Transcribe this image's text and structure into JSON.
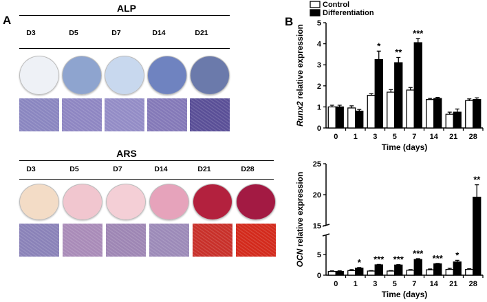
{
  "panel_a": {
    "letter": "A",
    "alp": {
      "title": "ALP",
      "days": [
        "D3",
        "D5",
        "D7",
        "D14",
        "D21"
      ],
      "dish_colors": [
        "#eef1f6",
        "#8ea4cf",
        "#c8d8ee",
        "#6f83c0",
        "#6b7aab"
      ],
      "micro_colors": [
        "#8a86c0",
        "#8e86c2",
        "#938cc6",
        "#8479b8",
        "#5a4f97"
      ]
    },
    "ars": {
      "title": "ARS",
      "days": [
        "D3",
        "D5",
        "D7",
        "D14",
        "D21",
        "D28"
      ],
      "dish_colors": [
        "#f3dcc6",
        "#f1c6cf",
        "#f4cfd6",
        "#e6a3bb",
        "#b3213e",
        "#a31a43"
      ],
      "micro_colors": [
        "#8a82b8",
        "#a98bb8",
        "#9e86b4",
        "#9c8ab8",
        "#c8302a",
        "#d32a1c"
      ]
    }
  },
  "panel_b": {
    "letter": "B",
    "legend": {
      "control": "Control",
      "differentiation": "Differentiation"
    },
    "colors": {
      "control": "#ffffff",
      "differentiation": "#000000",
      "axis": "#000000"
    }
  },
  "chart_data": [
    {
      "type": "bar",
      "categories": [
        "0",
        "1",
        "3",
        "5",
        "7",
        "14",
        "21",
        "28"
      ],
      "xlabel": "Time (days)",
      "ylabel_italic": "Runx2",
      "ylabel_rest": " relative expression",
      "ylim": [
        0,
        5
      ],
      "yticks": [
        0,
        1,
        2,
        3,
        4,
        5
      ],
      "series": [
        {
          "name": "Control",
          "values": [
            1.0,
            0.95,
            1.55,
            1.7,
            1.8,
            1.35,
            0.65,
            1.3
          ],
          "errors": [
            0.08,
            0.1,
            0.08,
            0.12,
            0.12,
            0.05,
            0.1,
            0.08
          ]
        },
        {
          "name": "Differentiation",
          "values": [
            1.0,
            0.8,
            3.25,
            3.1,
            4.05,
            1.4,
            0.75,
            1.35
          ],
          "errors": [
            0.08,
            0.08,
            0.4,
            0.25,
            0.2,
            0.05,
            0.15,
            0.08
          ]
        }
      ],
      "significance": [
        "",
        "",
        "*",
        "**",
        "***",
        "",
        "",
        ""
      ]
    },
    {
      "type": "bar",
      "categories": [
        "0",
        "1",
        "3",
        "5",
        "7",
        "14",
        "21",
        "28"
      ],
      "xlabel": "Time (days)",
      "ylabel_italic": "OCN",
      "ylabel_rest": " relative expression",
      "ylim": [
        0,
        25
      ],
      "axis_break": [
        5,
        15
      ],
      "yticks": [
        0,
        5,
        15,
        20,
        25
      ],
      "series": [
        {
          "name": "Control",
          "values": [
            0.9,
            1.1,
            1.0,
            1.0,
            1.2,
            1.3,
            1.4,
            1.4
          ],
          "errors": [
            0.15,
            0.25,
            0.1,
            0.1,
            0.15,
            0.2,
            0.25,
            0.15
          ]
        },
        {
          "name": "Differentiation",
          "values": [
            0.9,
            1.7,
            2.5,
            2.45,
            3.8,
            2.75,
            3.2,
            19.6
          ],
          "errors": [
            0.15,
            0.15,
            0.1,
            0.1,
            0.2,
            0.1,
            0.4,
            2.0
          ]
        }
      ],
      "significance": [
        "",
        "*",
        "***",
        "***",
        "***",
        "***",
        "*",
        "**"
      ]
    }
  ]
}
